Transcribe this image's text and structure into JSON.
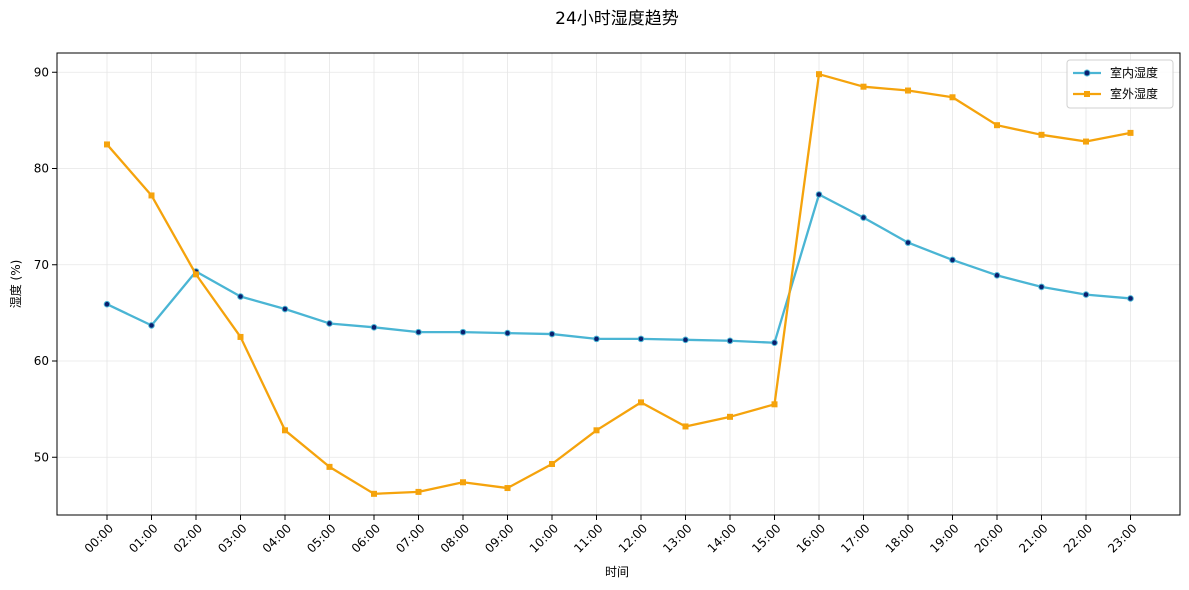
{
  "chart_data": {
    "type": "line",
    "title": "24小时湿度趋势",
    "xlabel": "时间",
    "ylabel": "湿度 (%)",
    "categories": [
      "00:00",
      "01:00",
      "02:00",
      "03:00",
      "04:00",
      "05:00",
      "06:00",
      "07:00",
      "08:00",
      "09:00",
      "10:00",
      "11:00",
      "12:00",
      "13:00",
      "14:00",
      "15:00",
      "16:00",
      "17:00",
      "18:00",
      "19:00",
      "20:00",
      "21:00",
      "22:00",
      "23:00"
    ],
    "ylim": [
      44,
      92
    ],
    "yticks": [
      50,
      60,
      70,
      80,
      90
    ],
    "grid": true,
    "legend_position": "top-right",
    "series": [
      {
        "name": "室内湿度",
        "color": "#4ab5d4",
        "marker": "circle",
        "marker_color": "#0a1f6e",
        "values": [
          65.9,
          63.7,
          69.3,
          66.7,
          65.4,
          63.9,
          63.5,
          63.0,
          63.0,
          62.9,
          62.8,
          62.3,
          62.3,
          62.2,
          62.1,
          61.9,
          77.3,
          74.9,
          72.3,
          70.5,
          68.9,
          67.7,
          66.9,
          66.5
        ]
      },
      {
        "name": "室外湿度",
        "color": "#f5a30c",
        "marker": "square",
        "marker_color": "#f5a30c",
        "values": [
          82.5,
          77.2,
          69.0,
          62.5,
          52.8,
          49.0,
          46.2,
          46.4,
          47.4,
          46.8,
          49.3,
          52.8,
          55.7,
          53.2,
          54.2,
          55.5,
          89.8,
          88.5,
          88.1,
          87.4,
          84.5,
          83.5,
          82.8,
          83.7
        ]
      }
    ]
  }
}
